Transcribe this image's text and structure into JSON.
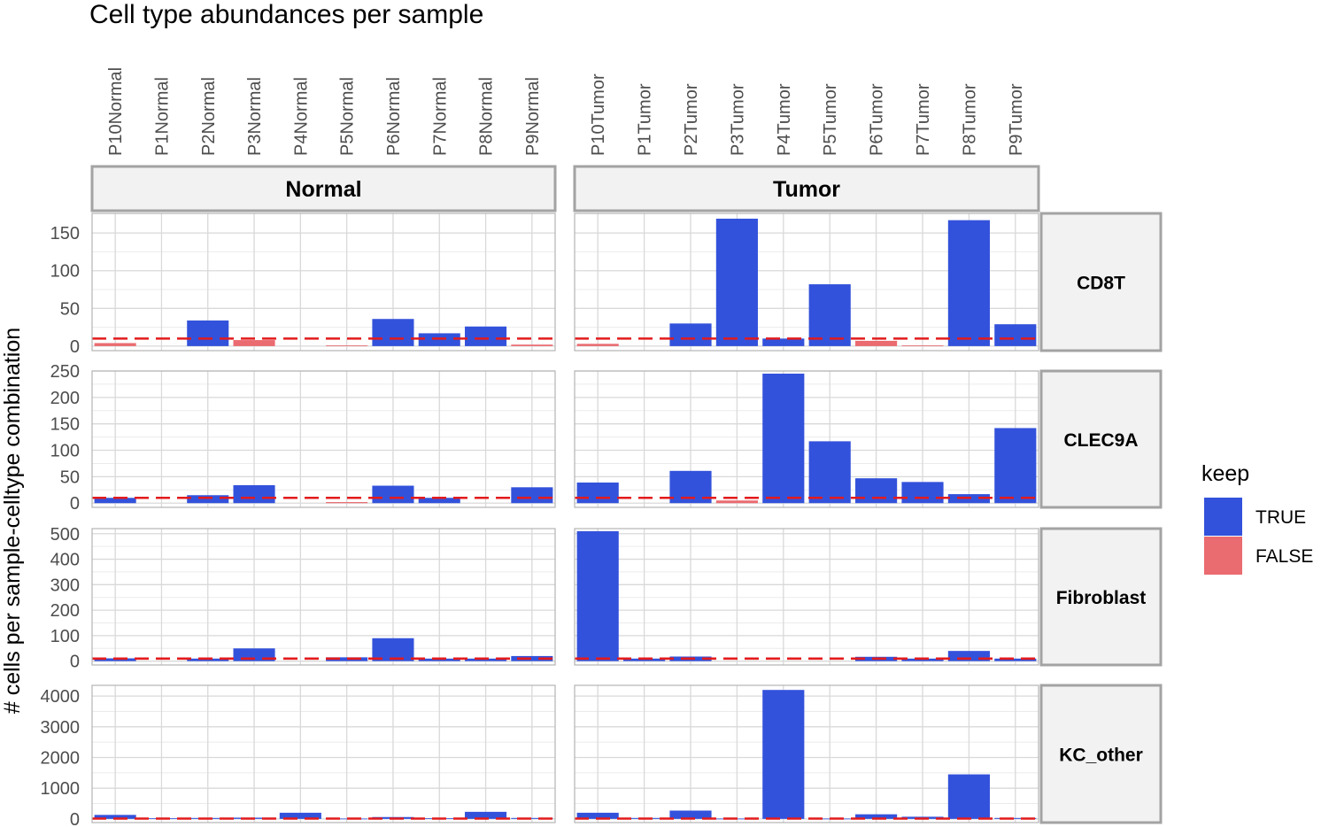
{
  "chart_data": {
    "type": "bar",
    "title": "Cell type abundances per sample",
    "ylabel": "# cells per sample-celltype combination",
    "xlabel": "",
    "threshold": 10,
    "colors": {
      "TRUE": "#3352db",
      "FALSE": "#ea6b70",
      "threshold": "#e31a1c"
    },
    "legend": {
      "title": "keep",
      "placement": "right",
      "entries": [
        {
          "label": "TRUE",
          "key": "TRUE"
        },
        {
          "label": "FALSE",
          "key": "FALSE"
        }
      ]
    },
    "columns": [
      {
        "name": "Normal",
        "categories": [
          "P10Normal",
          "P1Normal",
          "P2Normal",
          "P3Normal",
          "P4Normal",
          "P5Normal",
          "P6Normal",
          "P7Normal",
          "P8Normal",
          "P9Normal"
        ]
      },
      {
        "name": "Tumor",
        "categories": [
          "P10Tumor",
          "P1Tumor",
          "P2Tumor",
          "P3Tumor",
          "P4Tumor",
          "P5Tumor",
          "P6Tumor",
          "P7Tumor",
          "P8Tumor",
          "P9Tumor"
        ]
      }
    ],
    "rows": [
      {
        "name": "CD8T",
        "ylim": [
          -6,
          176
        ],
        "yticks": [
          0,
          50,
          100,
          150
        ],
        "values": [
          [
            4,
            0,
            34,
            8,
            0,
            1,
            36,
            17,
            26,
            2
          ],
          [
            3,
            0,
            30,
            169,
            10,
            82,
            7,
            1,
            167,
            29
          ]
        ],
        "keep": [
          [
            false,
            false,
            true,
            false,
            false,
            false,
            true,
            true,
            true,
            false
          ],
          [
            false,
            false,
            true,
            true,
            true,
            true,
            false,
            false,
            true,
            true
          ]
        ]
      },
      {
        "name": "CLEC9A",
        "ylim": [
          -8,
          250
        ],
        "yticks": [
          0,
          50,
          100,
          150,
          200,
          250
        ],
        "values": [
          [
            10,
            0,
            15,
            34,
            0,
            2,
            33,
            10,
            0,
            30
          ],
          [
            39,
            0,
            61,
            5,
            245,
            117,
            47,
            40,
            17,
            142
          ]
        ],
        "keep": [
          [
            true,
            false,
            true,
            true,
            false,
            false,
            true,
            true,
            false,
            true
          ],
          [
            true,
            false,
            true,
            false,
            true,
            true,
            true,
            true,
            true,
            true
          ]
        ]
      },
      {
        "name": "Fibroblast",
        "ylim": [
          -15,
          520
        ],
        "yticks": [
          0,
          100,
          200,
          300,
          400,
          500
        ],
        "values": [
          [
            11,
            0,
            10,
            50,
            0,
            15,
            90,
            10,
            10,
            20
          ],
          [
            510,
            10,
            18,
            0,
            0,
            0,
            17,
            10,
            40,
            10
          ]
        ],
        "keep": [
          [
            true,
            false,
            true,
            true,
            false,
            true,
            true,
            true,
            true,
            true
          ],
          [
            true,
            true,
            true,
            false,
            false,
            false,
            true,
            true,
            true,
            true
          ]
        ]
      },
      {
        "name": "KC_other",
        "ylim": [
          -120,
          4350
        ],
        "yticks": [
          0,
          1000,
          2000,
          3000,
          4000
        ],
        "values": [
          [
            130,
            20,
            30,
            40,
            200,
            10,
            60,
            20,
            230,
            30
          ],
          [
            200,
            30,
            270,
            10,
            4200,
            10,
            150,
            70,
            1450,
            30
          ]
        ],
        "keep": [
          [
            true,
            true,
            true,
            true,
            true,
            true,
            true,
            true,
            true,
            true
          ],
          [
            true,
            true,
            true,
            true,
            true,
            true,
            true,
            true,
            true,
            true
          ]
        ]
      }
    ]
  }
}
